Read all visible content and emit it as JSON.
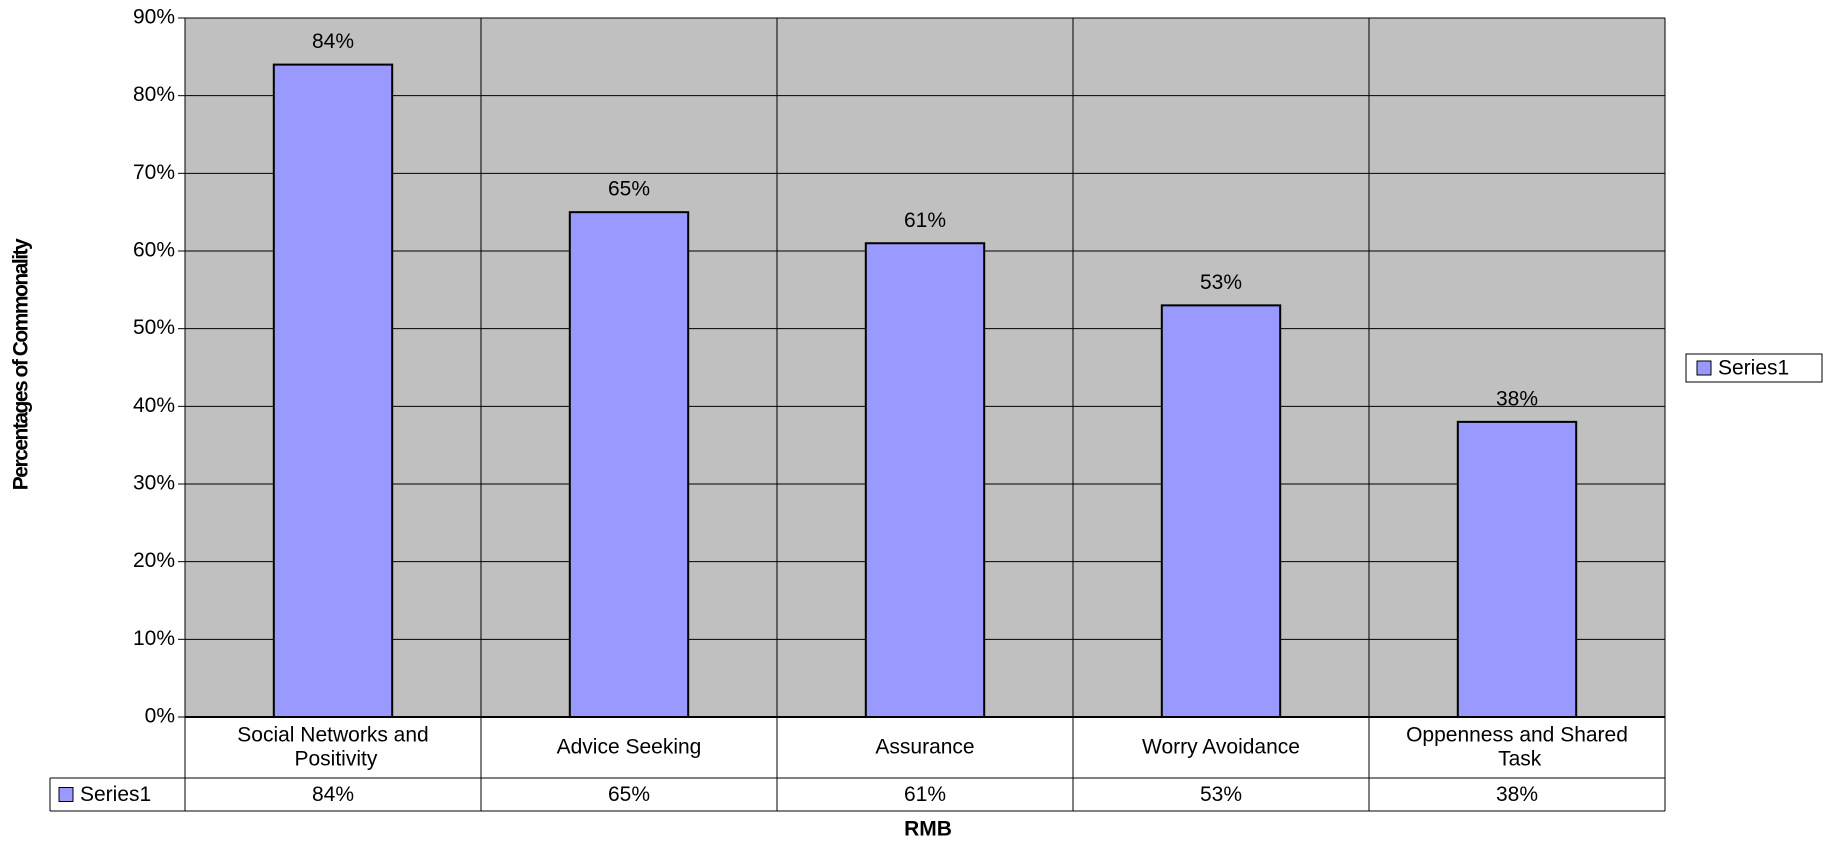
{
  "chart_data": {
    "type": "bar",
    "x_label": "RMB",
    "y_label": "Percentages of Commonality",
    "categories": [
      "Social Networks and Positivity",
      "Advice Seeking",
      "Assurance",
      "Worry Avoidance",
      "Oppenness and Shared Task"
    ],
    "series": [
      {
        "name": "Series1",
        "color": "#9999ff",
        "values": [
          84,
          65,
          61,
          53,
          38
        ],
        "value_labels": [
          "84%",
          "65%",
          "61%",
          "53%",
          "38%"
        ]
      }
    ],
    "ylim": [
      0,
      90
    ],
    "yticks": [
      {
        "value": 0,
        "label": "0%"
      },
      {
        "value": 10,
        "label": "10%"
      },
      {
        "value": 20,
        "label": "20%"
      },
      {
        "value": 30,
        "label": "30%"
      },
      {
        "value": 40,
        "label": "40%"
      },
      {
        "value": 50,
        "label": "50%"
      },
      {
        "value": 60,
        "label": "60%"
      },
      {
        "value": 70,
        "label": "70%"
      },
      {
        "value": 80,
        "label": "80%"
      },
      {
        "value": 90,
        "label": "90%"
      }
    ],
    "grid": true,
    "legend": "right",
    "plot_background": "#c0c0c0"
  }
}
